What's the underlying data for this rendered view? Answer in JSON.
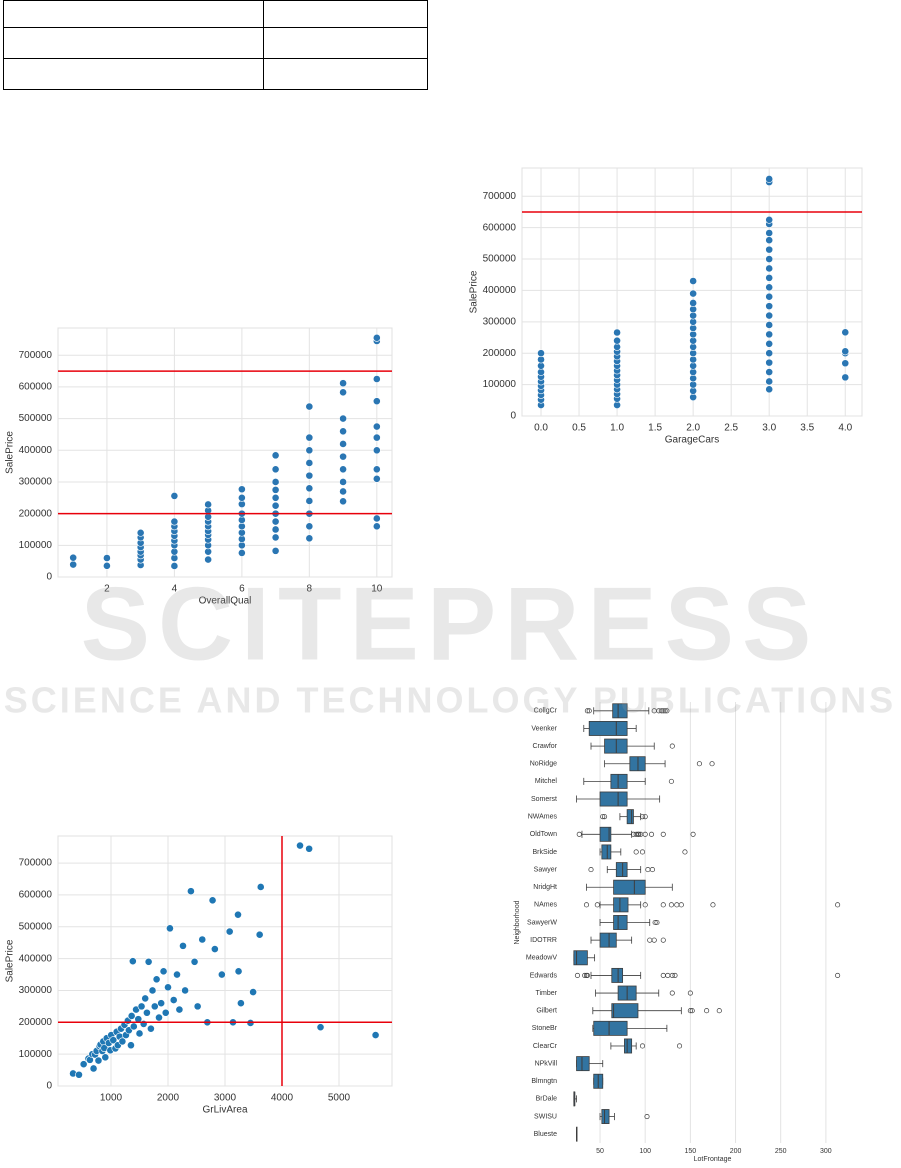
{
  "watermark": {
    "title": "SCITEPRESS",
    "subtitle": "SCIENCE AND TECHNOLOGY PUBLICATIONS"
  },
  "chart_data": [
    {
      "type": "scatter",
      "xlabel": "OverallQual",
      "ylabel": "SalePrice",
      "color": "#2a76b3",
      "grid": "both",
      "xlim": [
        0.55,
        10.45
      ],
      "xticks": [
        2,
        4,
        6,
        8,
        10
      ],
      "ylim": [
        0,
        786000
      ],
      "yticks": [
        0,
        100000,
        200000,
        300000,
        400000,
        500000,
        600000,
        700000
      ],
      "hlines": [
        650000,
        200000
      ],
      "vlines": [],
      "line_color": "#e8000b",
      "x": [
        1,
        1,
        2,
        2,
        3,
        3,
        3,
        3,
        3,
        3,
        3,
        3,
        4,
        4,
        4,
        4,
        4,
        4,
        4,
        4,
        4,
        4,
        5,
        5,
        5,
        5,
        5,
        5,
        5,
        5,
        5,
        5,
        5,
        6,
        6,
        6,
        6,
        6,
        6,
        6,
        6,
        6,
        6,
        7,
        7,
        7,
        7,
        7,
        7,
        7,
        7,
        7,
        7,
        7,
        8,
        8,
        8,
        8,
        8,
        8,
        8,
        8,
        8,
        8,
        9,
        9,
        9,
        9,
        9,
        9,
        9,
        9,
        9,
        9,
        10,
        10,
        10,
        10,
        10,
        10,
        10,
        10,
        10,
        10,
        10
      ],
      "values": [
        39300,
        61000,
        35300,
        60000,
        37900,
        55000,
        68400,
        80000,
        94000,
        108000,
        125000,
        139600,
        34900,
        60000,
        80000,
        100000,
        115000,
        130000,
        145000,
        160000,
        175000,
        256000,
        55000,
        80000,
        100000,
        118000,
        133000,
        145000,
        160000,
        175000,
        190000,
        210000,
        228950,
        76000,
        100000,
        120000,
        140000,
        160000,
        180000,
        200000,
        230000,
        250000,
        277000,
        82500,
        125000,
        150000,
        175000,
        200000,
        225000,
        250000,
        275000,
        300000,
        340000,
        383970,
        122000,
        160000,
        200000,
        240000,
        280000,
        320000,
        360000,
        400000,
        440000,
        538000,
        239000,
        270000,
        300000,
        340000,
        380000,
        420000,
        460000,
        500000,
        582933,
        611657,
        160000,
        184750,
        310000,
        340000,
        400000,
        440000,
        475000,
        555000,
        625000,
        745000,
        755000
      ]
    },
    {
      "type": "scatter",
      "xlabel": "GarageCars",
      "ylabel": "SalePrice",
      "color": "#2a76b3",
      "grid": "both",
      "xlim": [
        -0.25,
        4.22
      ],
      "xticks": [
        {
          "value": 0,
          "label": "0.0"
        },
        {
          "value": 0.5,
          "label": "0.5"
        },
        {
          "value": 1,
          "label": "1.0"
        },
        {
          "value": 1.5,
          "label": "1.5"
        },
        {
          "value": 2,
          "label": "2.0"
        },
        {
          "value": 2.5,
          "label": "2.5"
        },
        {
          "value": 3,
          "label": "3.0"
        },
        {
          "value": 3.5,
          "label": "3.5"
        },
        {
          "value": 4,
          "label": "4.0"
        }
      ],
      "ylim": [
        0,
        790000
      ],
      "yticks": [
        0,
        100000,
        200000,
        300000,
        400000,
        500000,
        600000,
        700000
      ],
      "hlines": [
        650000
      ],
      "vlines": [],
      "line_color": "#e8000b",
      "x": [
        0,
        0,
        0,
        0,
        0,
        0,
        0,
        0,
        0,
        0,
        0,
        1,
        1,
        1,
        1,
        1,
        1,
        1,
        1,
        1,
        1,
        1,
        1,
        1,
        1,
        1,
        2,
        2,
        2,
        2,
        2,
        2,
        2,
        2,
        2,
        2,
        2,
        2,
        2,
        2,
        2,
        2,
        2,
        2,
        3,
        3,
        3,
        3,
        3,
        3,
        3,
        3,
        3,
        3,
        3,
        3,
        3,
        3,
        3,
        3,
        3,
        3,
        3,
        3,
        3,
        3,
        4,
        4,
        4,
        4,
        4
      ],
      "values": [
        35000,
        52000,
        67000,
        82000,
        96000,
        110000,
        125000,
        140000,
        160000,
        180000,
        200000,
        34900,
        55000,
        70000,
        85000,
        100000,
        115000,
        130000,
        145000,
        160000,
        175000,
        190000,
        205000,
        220000,
        240000,
        266000,
        60000,
        80000,
        100000,
        120000,
        140000,
        160000,
        180000,
        200000,
        220000,
        240000,
        260000,
        280000,
        300000,
        320000,
        340000,
        360000,
        390000,
        430000,
        85000,
        110000,
        140000,
        170000,
        200000,
        230000,
        260000,
        290000,
        320000,
        350000,
        380000,
        410000,
        440000,
        470000,
        500000,
        530000,
        560000,
        582933,
        611657,
        625000,
        745000,
        755000,
        123000,
        168000,
        200000,
        206000,
        266500
      ]
    },
    {
      "type": "scatter",
      "xlabel": "GrLivArea",
      "ylabel": "SalePrice",
      "color": "#1f77b4",
      "grid": "both",
      "xlim": [
        70,
        5930
      ],
      "xticks": [
        1000,
        2000,
        3000,
        4000,
        5000
      ],
      "ylim": [
        0,
        785000
      ],
      "yticks": [
        0,
        100000,
        200000,
        300000,
        400000,
        500000,
        600000,
        700000
      ],
      "hlines": [
        200000
      ],
      "vlines": [
        4000
      ],
      "line_color": "#e8000b",
      "x": [
        334,
        438,
        520,
        605,
        630,
        672,
        694,
        720,
        747,
        780,
        800,
        816,
        848,
        864,
        882,
        900,
        925,
        960,
        988,
        1004,
        1040,
        1077,
        1099,
        1120,
        1152,
        1176,
        1200,
        1236,
        1262,
        1296,
        1314,
        1350,
        1362,
        1383,
        1400,
        1440,
        1479,
        1500,
        1536,
        1573,
        1600,
        1630,
        1660,
        1700,
        1728,
        1768,
        1800,
        1842,
        1880,
        1922,
        1960,
        2000,
        2034,
        2100,
        2158,
        2200,
        2263,
        2300,
        2402,
        2466,
        2520,
        2601,
        2690,
        2782,
        2822,
        2945,
        3082,
        3140,
        3228,
        3238,
        3279,
        3447,
        3493,
        3608,
        3627,
        4316,
        4476,
        4676,
        5642
      ],
      "values": [
        39300,
        35311,
        68500,
        86000,
        82000,
        100000,
        55000,
        98600,
        110000,
        80000,
        125000,
        130000,
        109900,
        140000,
        119000,
        90000,
        150000,
        135000,
        112000,
        160000,
        144000,
        118000,
        170000,
        128000,
        155000,
        180000,
        140000,
        192000,
        160000,
        205000,
        175000,
        128000,
        220000,
        392000,
        187000,
        240000,
        210000,
        165000,
        250000,
        195000,
        275000,
        230000,
        390000,
        180000,
        300000,
        250000,
        335000,
        215000,
        260000,
        360000,
        230000,
        310000,
        495000,
        270000,
        350000,
        240000,
        440000,
        300000,
        611657,
        390000,
        250000,
        460000,
        200000,
        582933,
        430000,
        350000,
        485000,
        200000,
        538000,
        360000,
        260000,
        198000,
        295000,
        475000,
        625000,
        755000,
        745000,
        184750,
        160000
      ]
    },
    {
      "type": "box",
      "xlabel": "LotFrontage",
      "ylabel": "Neighborhood",
      "color": "#3274a1",
      "grid": "x",
      "xlim": [
        9,
        340
      ],
      "xticks": [
        50,
        100,
        150,
        200,
        250,
        300
      ],
      "categories": [
        "CollgCr",
        "Veenker",
        "Crawfor",
        "NoRidge",
        "Mitchel",
        "Somerst",
        "NWAmes",
        "OldTown",
        "BrkSide",
        "Sawyer",
        "NridgHt",
        "NAmes",
        "SawyerW",
        "IDOTRR",
        "MeadowV",
        "Edwards",
        "Timber",
        "Gilbert",
        "StoneBr",
        "ClearCr",
        "NPkVill",
        "Blmngtn",
        "BrDale",
        "SWISU",
        "Blueste"
      ],
      "whislo": [
        43,
        32,
        40,
        55,
        32,
        24,
        72,
        30,
        50,
        58,
        35,
        50,
        50,
        40,
        21,
        40,
        45,
        42,
        42,
        62,
        24,
        43,
        21,
        50,
        24
      ],
      "q1": [
        64,
        38,
        55,
        83,
        62,
        50,
        80,
        50,
        52,
        68,
        65,
        65,
        65,
        50,
        21,
        63,
        70,
        63,
        43,
        77,
        24,
        43,
        21,
        52,
        24
      ],
      "median": [
        70,
        68,
        68,
        92,
        70,
        70,
        85,
        60,
        58,
        75,
        88,
        72,
        70,
        60,
        24,
        70,
        80,
        65,
        60,
        80,
        30,
        48,
        22,
        55,
        24
      ],
      "q3": [
        80,
        80,
        80,
        100,
        80,
        80,
        87,
        62,
        62,
        80,
        100,
        81,
        80,
        68,
        36,
        75,
        90,
        92,
        80,
        85,
        38,
        53,
        22,
        60,
        24
      ],
      "whishi": [
        104,
        90,
        110,
        122,
        100,
        116,
        95,
        85,
        73,
        95,
        130,
        95,
        105,
        85,
        44,
        95,
        115,
        140,
        124,
        90,
        53,
        53,
        24,
        66,
        24
      ],
      "outliers": [
        [
          36,
          38,
          110,
          115,
          118,
          120,
          122,
          124
        ],
        [],
        [
          130
        ],
        [
          160,
          174
        ],
        [
          129
        ],
        [],
        [
          53,
          55,
          97,
          100
        ],
        [
          27,
          87,
          90,
          92,
          93,
          95,
          100,
          107,
          120,
          153
        ],
        [
          90,
          97,
          144
        ],
        [
          40,
          103,
          108
        ],
        [],
        [
          35,
          47,
          100,
          120,
          129,
          135,
          140,
          175,
          313
        ],
        [
          111,
          113
        ],
        [
          105,
          110,
          120
        ],
        [],
        [
          25,
          33,
          35,
          36,
          120,
          125,
          130,
          133,
          313
        ],
        [
          130,
          150
        ],
        [
          150,
          152,
          168,
          182
        ],
        [],
        [
          97,
          138
        ],
        [],
        [],
        [],
        [
          102
        ],
        []
      ]
    }
  ]
}
